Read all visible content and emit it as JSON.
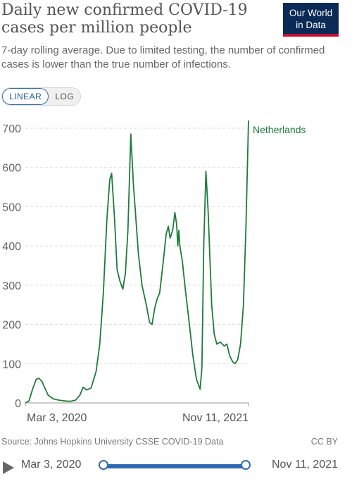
{
  "header": {
    "title": "Daily new confirmed COVID-19 cases per million people",
    "subtitle": "7-day rolling average. Due to limited testing, the number of confirmed cases is lower than the true number of infections.",
    "logo_line1": "Our World",
    "logo_line2": "in Data"
  },
  "controls": {
    "linear_label": "LINEAR",
    "log_label": "LOG",
    "active_scale": "linear"
  },
  "footer": {
    "source": "Source: Johns Hopkins University CSSE COVID-19 Data",
    "license": "CC BY"
  },
  "timeline": {
    "start_label": "Mar 3, 2020",
    "end_label": "Nov 11, 2021"
  },
  "colors": {
    "series": "#1e7b3c",
    "grid": "#dddddd",
    "axis": "#999999",
    "accent": "#2e6ab1"
  },
  "chart_data": {
    "type": "line",
    "title": "Daily new confirmed COVID-19 cases per million people",
    "xlabel": "",
    "ylabel": "",
    "ylim": [
      0,
      700
    ],
    "yticks": [
      0,
      100,
      200,
      300,
      400,
      500,
      600,
      700
    ],
    "xlim": [
      "2020-03-03",
      "2021-11-11"
    ],
    "xtick_labels": [
      "Mar 3, 2020",
      "Nov 11, 2021"
    ],
    "grid": true,
    "series": [
      {
        "name": "Netherlands",
        "points": [
          [
            "2020-03-03",
            0
          ],
          [
            "2020-03-13",
            5
          ],
          [
            "2020-03-23",
            35
          ],
          [
            "2020-04-02",
            60
          ],
          [
            "2020-04-09",
            63
          ],
          [
            "2020-04-18",
            55
          ],
          [
            "2020-04-25",
            40
          ],
          [
            "2020-05-05",
            20
          ],
          [
            "2020-05-20",
            10
          ],
          [
            "2020-06-05",
            7
          ],
          [
            "2020-06-20",
            5
          ],
          [
            "2020-07-05",
            4
          ],
          [
            "2020-07-20",
            7
          ],
          [
            "2020-08-01",
            20
          ],
          [
            "2020-08-10",
            40
          ],
          [
            "2020-08-20",
            33
          ],
          [
            "2020-09-01",
            38
          ],
          [
            "2020-09-15",
            80
          ],
          [
            "2020-09-25",
            150
          ],
          [
            "2020-10-05",
            280
          ],
          [
            "2020-10-15",
            470
          ],
          [
            "2020-10-23",
            570
          ],
          [
            "2020-10-28",
            585
          ],
          [
            "2020-11-05",
            470
          ],
          [
            "2020-11-12",
            340
          ],
          [
            "2020-11-20",
            310
          ],
          [
            "2020-11-28",
            290
          ],
          [
            "2020-12-05",
            330
          ],
          [
            "2020-12-12",
            440
          ],
          [
            "2020-12-20",
            685
          ],
          [
            "2020-12-27",
            560
          ],
          [
            "2021-01-03",
            470
          ],
          [
            "2021-01-10",
            380
          ],
          [
            "2021-01-20",
            300
          ],
          [
            "2021-02-01",
            250
          ],
          [
            "2021-02-10",
            205
          ],
          [
            "2021-02-17",
            200
          ],
          [
            "2021-02-24",
            240
          ],
          [
            "2021-03-03",
            265
          ],
          [
            "2021-03-10",
            280
          ],
          [
            "2021-03-20",
            360
          ],
          [
            "2021-03-28",
            430
          ],
          [
            "2021-04-03",
            450
          ],
          [
            "2021-04-08",
            420
          ],
          [
            "2021-04-15",
            440
          ],
          [
            "2021-04-21",
            485
          ],
          [
            "2021-04-26",
            455
          ],
          [
            "2021-04-29",
            400
          ],
          [
            "2021-05-02",
            440
          ],
          [
            "2021-05-05",
            400
          ],
          [
            "2021-05-12",
            360
          ],
          [
            "2021-05-20",
            290
          ],
          [
            "2021-05-30",
            210
          ],
          [
            "2021-06-10",
            120
          ],
          [
            "2021-06-20",
            60
          ],
          [
            "2021-06-30",
            35
          ],
          [
            "2021-07-05",
            90
          ],
          [
            "2021-07-10",
            400
          ],
          [
            "2021-07-16",
            590
          ],
          [
            "2021-07-22",
            490
          ],
          [
            "2021-08-01",
            250
          ],
          [
            "2021-08-08",
            175
          ],
          [
            "2021-08-15",
            150
          ],
          [
            "2021-08-25",
            155
          ],
          [
            "2021-09-05",
            145
          ],
          [
            "2021-09-12",
            150
          ],
          [
            "2021-09-20",
            120
          ],
          [
            "2021-09-28",
            105
          ],
          [
            "2021-10-05",
            100
          ],
          [
            "2021-10-12",
            110
          ],
          [
            "2021-10-20",
            150
          ],
          [
            "2021-10-28",
            250
          ],
          [
            "2021-11-04",
            450
          ],
          [
            "2021-11-11",
            720
          ]
        ]
      }
    ]
  }
}
